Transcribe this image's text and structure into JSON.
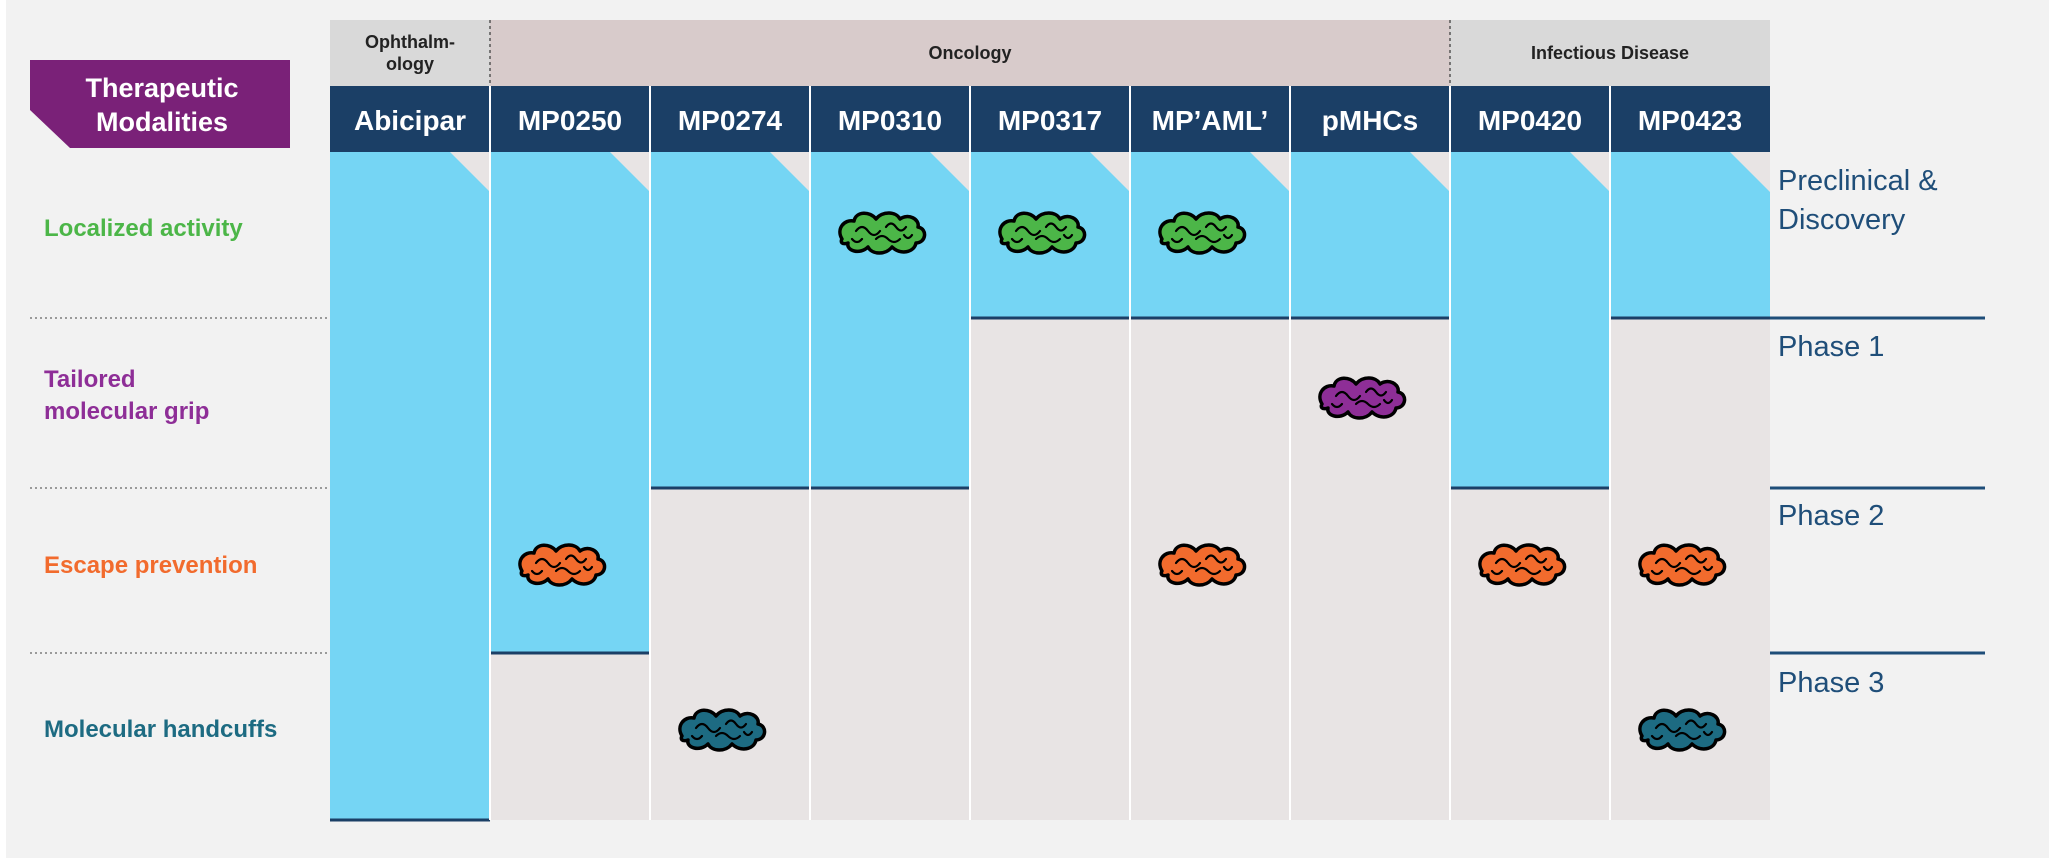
{
  "badge": {
    "line1": "Therapeutic",
    "line2": "Modalities"
  },
  "categories": [
    {
      "name_lines": [
        "Ophthalm-",
        "ology"
      ],
      "span": 1
    },
    {
      "name_lines": [
        "Oncology"
      ],
      "span": 6
    },
    {
      "name_lines": [
        "Infectious Disease"
      ],
      "span": 2
    }
  ],
  "programs": [
    {
      "name": "Abicipar",
      "phase_reached": 4
    },
    {
      "name": "MP0250",
      "phase_reached": 3
    },
    {
      "name": "MP0274",
      "phase_reached": 2
    },
    {
      "name": "MP0310",
      "phase_reached": 2
    },
    {
      "name": "MP0317",
      "phase_reached": 1
    },
    {
      "name": "MP’AML’",
      "phase_reached": 1
    },
    {
      "name": "pMHCs",
      "phase_reached": 1
    },
    {
      "name": "MP0420",
      "phase_reached": 2
    },
    {
      "name": "MP0423",
      "phase_reached": 1
    }
  ],
  "modalities": [
    {
      "lines": [
        "Localized activity"
      ],
      "color": "#4cb648"
    },
    {
      "lines": [
        "Tailored",
        "molecular grip"
      ],
      "color": "#8e2e97"
    },
    {
      "lines": [
        "Escape prevention"
      ],
      "color": "#f26b2d"
    },
    {
      "lines": [
        "Molecular handcuffs"
      ],
      "color": "#1d6b82"
    }
  ],
  "phases": [
    {
      "lines": [
        "Preclinical &",
        "Discovery"
      ]
    },
    {
      "lines": [
        "Phase 1"
      ]
    },
    {
      "lines": [
        "Phase 2"
      ]
    },
    {
      "lines": [
        "Phase 3"
      ]
    }
  ],
  "markers": [
    {
      "program": 3,
      "modality": 0
    },
    {
      "program": 4,
      "modality": 0
    },
    {
      "program": 5,
      "modality": 0
    },
    {
      "program": 6,
      "modality": 1
    },
    {
      "program": 1,
      "modality": 2
    },
    {
      "program": 5,
      "modality": 2
    },
    {
      "program": 7,
      "modality": 2
    },
    {
      "program": 8,
      "modality": 2
    },
    {
      "program": 2,
      "modality": 3
    },
    {
      "program": 8,
      "modality": 3
    }
  ],
  "colors": {
    "header_navy": "#1b3f66",
    "progress_fill": "#75d5f4",
    "cell_background": "#e8e4e4",
    "category_oncology": "#d8cbcb",
    "category_other": "#d9d9d9",
    "badge": "#7a2178",
    "phase_text": "#1f4e79",
    "frame_background": "#f2f2f2"
  }
}
